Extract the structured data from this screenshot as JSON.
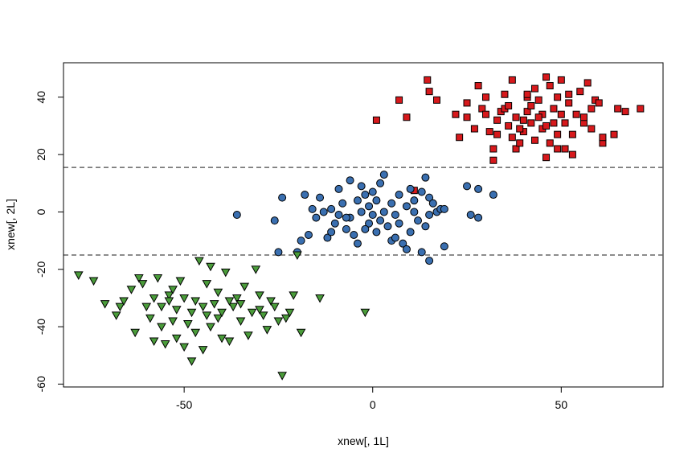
{
  "chart_data": {
    "type": "scatter",
    "title": "",
    "xlabel": "xnew[, 1L]",
    "ylabel": "xnew[, 2L]",
    "xlim": [
      -82,
      77
    ],
    "ylim": [
      -61,
      52
    ],
    "x_ticks": [
      -50,
      0,
      50
    ],
    "y_ticks": [
      -60,
      -40,
      -20,
      0,
      20,
      40
    ],
    "x_tick_labels": [
      "-50",
      "0",
      "50"
    ],
    "y_tick_labels": [
      "-60",
      "-40",
      "-20",
      "0",
      "20",
      "40"
    ],
    "grid": false,
    "hlines": [
      {
        "y": 15.5,
        "style": "dashed",
        "color": "#666666"
      },
      {
        "y": -15,
        "style": "dashed",
        "color": "#666666"
      }
    ],
    "series": [
      {
        "marker": "square",
        "color": "#d7191c",
        "points": [
          [
            14.5,
            46
          ],
          [
            15,
            42
          ],
          [
            17,
            39
          ],
          [
            7,
            39
          ],
          [
            1,
            32
          ],
          [
            9,
            33
          ],
          [
            11,
            7.5
          ],
          [
            22,
            34
          ],
          [
            23,
            26
          ],
          [
            25,
            33
          ],
          [
            27,
            29
          ],
          [
            28,
            44
          ],
          [
            29,
            36
          ],
          [
            30,
            40
          ],
          [
            31,
            28
          ],
          [
            32,
            18
          ],
          [
            32,
            22
          ],
          [
            33,
            32
          ],
          [
            33,
            27
          ],
          [
            34,
            35
          ],
          [
            35,
            41
          ],
          [
            35,
            36
          ],
          [
            36,
            30
          ],
          [
            37,
            26
          ],
          [
            37,
            46
          ],
          [
            38,
            33
          ],
          [
            38,
            22
          ],
          [
            39,
            24
          ],
          [
            40,
            32
          ],
          [
            40,
            28
          ],
          [
            41,
            35
          ],
          [
            41,
            40
          ],
          [
            42,
            37
          ],
          [
            42,
            31
          ],
          [
            43,
            43
          ],
          [
            43,
            25
          ],
          [
            44,
            39
          ],
          [
            45,
            34
          ],
          [
            45,
            29
          ],
          [
            46,
            47
          ],
          [
            46,
            19
          ],
          [
            47,
            44
          ],
          [
            47,
            24
          ],
          [
            48,
            36
          ],
          [
            48,
            31
          ],
          [
            49,
            40
          ],
          [
            49,
            27
          ],
          [
            50,
            46
          ],
          [
            50,
            34
          ],
          [
            51,
            31
          ],
          [
            51,
            22
          ],
          [
            52,
            38
          ],
          [
            53,
            27
          ],
          [
            53,
            20
          ],
          [
            54,
            34
          ],
          [
            55,
            42
          ],
          [
            56,
            31
          ],
          [
            57,
            45
          ],
          [
            58,
            36
          ],
          [
            58,
            29
          ],
          [
            59,
            39
          ],
          [
            60,
            38
          ],
          [
            61,
            24
          ],
          [
            61,
            26
          ],
          [
            64,
            27
          ],
          [
            65,
            36
          ],
          [
            67,
            35
          ],
          [
            71,
            36
          ],
          [
            41,
            41
          ],
          [
            44,
            33
          ],
          [
            39,
            29
          ],
          [
            36,
            37
          ],
          [
            52,
            41
          ],
          [
            25,
            38
          ],
          [
            30,
            34
          ],
          [
            46,
            30
          ],
          [
            49,
            22
          ],
          [
            56,
            33
          ]
        ]
      },
      {
        "marker": "circle",
        "color": "#3a6fb0",
        "points": [
          [
            -36,
            -1
          ],
          [
            -26,
            -3
          ],
          [
            -25,
            -14
          ],
          [
            -24,
            5
          ],
          [
            -19,
            -10
          ],
          [
            -18,
            6
          ],
          [
            -17,
            -8
          ],
          [
            -16,
            1
          ],
          [
            -15,
            -2
          ],
          [
            -14,
            5
          ],
          [
            -13,
            0
          ],
          [
            -12,
            -9
          ],
          [
            -11,
            -7
          ],
          [
            -10,
            -4
          ],
          [
            -9,
            8
          ],
          [
            -9,
            -1
          ],
          [
            -8,
            3
          ],
          [
            -7,
            -6
          ],
          [
            -6,
            11
          ],
          [
            -6,
            -2
          ],
          [
            -5,
            -8
          ],
          [
            -4,
            4
          ],
          [
            -4,
            -11
          ],
          [
            -3,
            9
          ],
          [
            -3,
            0
          ],
          [
            -2,
            6
          ],
          [
            -1,
            -4
          ],
          [
            -1,
            2
          ],
          [
            0,
            7
          ],
          [
            0,
            -1
          ],
          [
            1,
            4
          ],
          [
            1,
            -7
          ],
          [
            2,
            -3
          ],
          [
            2,
            10
          ],
          [
            3,
            0
          ],
          [
            3,
            13
          ],
          [
            4,
            -5
          ],
          [
            5,
            3
          ],
          [
            5,
            -10
          ],
          [
            6,
            -1
          ],
          [
            7,
            6
          ],
          [
            7,
            -4
          ],
          [
            8,
            -11
          ],
          [
            9,
            2
          ],
          [
            9,
            -13
          ],
          [
            10,
            8
          ],
          [
            10,
            -7
          ],
          [
            11,
            0
          ],
          [
            11,
            4
          ],
          [
            12,
            -3
          ],
          [
            13,
            -14
          ],
          [
            13,
            7
          ],
          [
            14,
            -5
          ],
          [
            14,
            12
          ],
          [
            15,
            -17
          ],
          [
            15,
            5
          ],
          [
            15,
            -1
          ],
          [
            16,
            3
          ],
          [
            17,
            0
          ],
          [
            18,
            1
          ],
          [
            19,
            1
          ],
          [
            19,
            -12
          ],
          [
            25,
            9
          ],
          [
            26,
            -1
          ],
          [
            28,
            8
          ],
          [
            28,
            -2
          ],
          [
            32,
            6
          ],
          [
            -20,
            -14
          ],
          [
            -2,
            -6
          ],
          [
            6,
            -9
          ],
          [
            -11,
            1
          ],
          [
            -7,
            -2
          ]
        ]
      },
      {
        "marker": "triangle-down",
        "color": "#4a9c3a",
        "points": [
          [
            -78,
            -22
          ],
          [
            -74,
            -24
          ],
          [
            -71,
            -32
          ],
          [
            -68,
            -36
          ],
          [
            -67,
            -33
          ],
          [
            -64,
            -27
          ],
          [
            -63,
            -42
          ],
          [
            -62,
            -23
          ],
          [
            -61,
            -25
          ],
          [
            -60,
            -33
          ],
          [
            -59,
            -37
          ],
          [
            -58,
            -45
          ],
          [
            -57,
            -23
          ],
          [
            -56,
            -33
          ],
          [
            -55,
            -46
          ],
          [
            -54,
            -29
          ],
          [
            -53,
            -38
          ],
          [
            -52,
            -34
          ],
          [
            -51,
            -24
          ],
          [
            -50,
            -47
          ],
          [
            -49,
            -39
          ],
          [
            -48,
            -52
          ],
          [
            -47,
            -42
          ],
          [
            -46,
            -17
          ],
          [
            -45,
            -48
          ],
          [
            -44,
            -25
          ],
          [
            -43,
            -40
          ],
          [
            -42,
            -32
          ],
          [
            -41,
            -37
          ],
          [
            -40,
            -35
          ],
          [
            -39,
            -21
          ],
          [
            -38,
            -45
          ],
          [
            -37,
            -33
          ],
          [
            -36,
            -30
          ],
          [
            -35,
            -38
          ],
          [
            -34,
            -26
          ],
          [
            -33,
            -43
          ],
          [
            -32,
            -35
          ],
          [
            -31,
            -20
          ],
          [
            -30,
            -29
          ],
          [
            -29,
            -36
          ],
          [
            -28,
            -41
          ],
          [
            -27,
            -31
          ],
          [
            -26,
            -33
          ],
          [
            -25,
            -38
          ],
          [
            -24,
            -57
          ],
          [
            -23,
            -37
          ],
          [
            -22,
            -35
          ],
          [
            -21,
            -29
          ],
          [
            -20,
            -15
          ],
          [
            -19,
            -42
          ],
          [
            -14,
            -30
          ],
          [
            -2,
            -35
          ],
          [
            -47,
            -31
          ],
          [
            -44,
            -36
          ],
          [
            -41,
            -28
          ],
          [
            -38,
            -31
          ],
          [
            -50,
            -30
          ],
          [
            -53,
            -27
          ],
          [
            -56,
            -40
          ],
          [
            -48,
            -35
          ],
          [
            -45,
            -33
          ],
          [
            -35,
            -32
          ],
          [
            -58,
            -30
          ],
          [
            -66,
            -31
          ],
          [
            -52,
            -44
          ],
          [
            -40,
            -44
          ],
          [
            -30,
            -34
          ],
          [
            -43,
            -19
          ],
          [
            -54,
            -31
          ]
        ]
      }
    ]
  }
}
